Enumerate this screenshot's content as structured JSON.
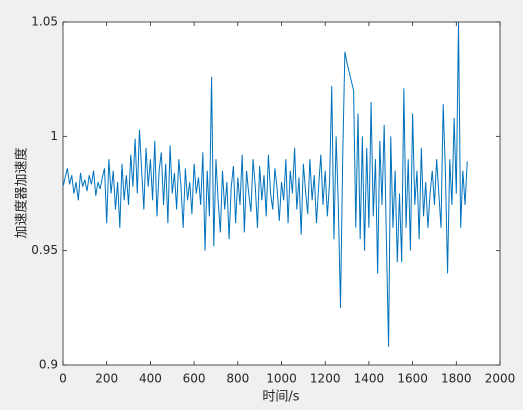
{
  "chart_data": {
    "type": "line",
    "xlabel": "时间/s",
    "ylabel": "加速度器加速度",
    "xlim": [
      0,
      2000
    ],
    "xticks": [
      0,
      200,
      400,
      600,
      800,
      1000,
      1200,
      1400,
      1600,
      1800,
      2000
    ],
    "ylim": [
      0.9,
      1.05
    ],
    "yticks": [
      0.9,
      0.95,
      1,
      1.05
    ],
    "series": [
      {
        "color": "#0072bd",
        "x": [
          0,
          10,
          20,
          30,
          40,
          50,
          60,
          70,
          80,
          90,
          100,
          110,
          120,
          130,
          140,
          150,
          160,
          170,
          180,
          190,
          200,
          210,
          220,
          230,
          240,
          250,
          260,
          270,
          280,
          290,
          300,
          310,
          320,
          330,
          340,
          350,
          360,
          370,
          380,
          390,
          400,
          410,
          420,
          430,
          440,
          450,
          460,
          470,
          480,
          490,
          500,
          510,
          520,
          530,
          540,
          550,
          560,
          570,
          580,
          590,
          600,
          610,
          620,
          630,
          640,
          650,
          660,
          670,
          680,
          690,
          700,
          710,
          720,
          730,
          740,
          750,
          760,
          770,
          780,
          790,
          800,
          810,
          820,
          830,
          840,
          850,
          860,
          870,
          880,
          890,
          900,
          910,
          920,
          930,
          940,
          950,
          960,
          970,
          980,
          990,
          1000,
          1010,
          1020,
          1030,
          1040,
          1050,
          1060,
          1070,
          1080,
          1090,
          1100,
          1110,
          1120,
          1130,
          1140,
          1150,
          1160,
          1170,
          1180,
          1190,
          1200,
          1210,
          1220,
          1230,
          1240,
          1250,
          1260,
          1270,
          1280,
          1290,
          1300,
          1310,
          1320,
          1330,
          1340,
          1350,
          1360,
          1370,
          1380,
          1390,
          1400,
          1410,
          1420,
          1430,
          1440,
          1450,
          1460,
          1470,
          1480,
          1490,
          1500,
          1510,
          1520,
          1530,
          1540,
          1550,
          1560,
          1570,
          1580,
          1590,
          1600,
          1610,
          1620,
          1630,
          1640,
          1650,
          1660,
          1670,
          1680,
          1690,
          1700,
          1710,
          1720,
          1730,
          1740,
          1750,
          1760,
          1770,
          1780,
          1790,
          1800,
          1810,
          1820,
          1830,
          1840,
          1850
        ],
        "values": [
          0.978,
          0.982,
          0.986,
          0.979,
          0.983,
          0.975,
          0.98,
          0.972,
          0.984,
          0.978,
          0.981,
          0.976,
          0.983,
          0.979,
          0.985,
          0.974,
          0.98,
          0.977,
          0.982,
          0.986,
          0.962,
          0.99,
          0.975,
          0.985,
          0.968,
          0.98,
          0.96,
          0.988,
          0.972,
          0.983,
          0.97,
          0.992,
          0.978,
          0.999,
          0.975,
          1.003,
          0.985,
          0.968,
          0.995,
          0.978,
          0.99,
          0.972,
          0.998,
          0.965,
          0.985,
          0.993,
          0.97,
          0.988,
          0.962,
          0.996,
          0.975,
          0.984,
          0.968,
          0.99,
          0.978,
          0.96,
          0.986,
          0.972,
          0.98,
          0.966,
          0.988,
          0.975,
          0.982,
          0.97,
          0.993,
          0.95,
          0.985,
          0.965,
          1.026,
          0.952,
          0.99,
          0.972,
          0.958,
          0.985,
          0.968,
          0.98,
          0.955,
          0.978,
          0.987,
          0.962,
          0.982,
          0.97,
          0.992,
          0.958,
          0.985,
          0.975,
          0.967,
          0.99,
          0.978,
          0.96,
          0.987,
          0.972,
          0.983,
          0.965,
          0.992,
          0.975,
          0.968,
          0.986,
          0.977,
          0.963,
          0.98,
          0.972,
          0.99,
          0.962,
          0.985,
          0.975,
          0.995,
          0.968,
          0.982,
          0.957,
          0.988,
          0.976,
          0.966,
          0.99,
          0.972,
          0.983,
          0.962,
          0.978,
          0.992,
          0.97,
          0.985,
          0.965,
          0.98,
          1.022,
          0.955,
          1.0,
          0.97,
          0.925,
          0.99,
          1.037,
          1.032,
          1.028,
          1.024,
          1.02,
          0.96,
          1.01,
          0.955,
          1.0,
          0.95,
          0.995,
          0.96,
          1.015,
          0.965,
          0.99,
          0.94,
          0.998,
          0.97,
          1.005,
          0.955,
          0.908,
          1.0,
          0.96,
          0.985,
          0.945,
          0.975,
          0.945,
          1.021,
          0.96,
          0.99,
          0.95,
          1.01,
          0.97,
          0.985,
          0.955,
          0.995,
          0.965,
          0.98,
          0.96,
          0.975,
          0.985,
          0.97,
          0.99,
          0.975,
          0.96,
          1.014,
          0.985,
          0.94,
          0.99,
          0.97,
          1.008,
          0.975,
          1.05,
          0.96,
          0.985,
          0.97,
          0.989
        ]
      }
    ]
  }
}
